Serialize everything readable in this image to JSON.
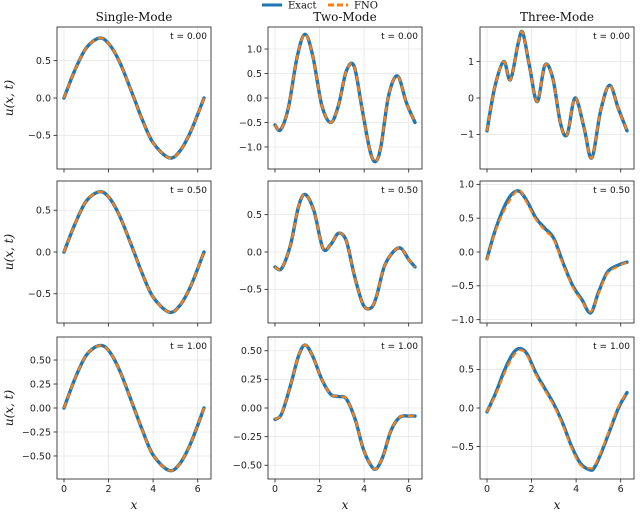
{
  "legend": {
    "exact": "Exact",
    "fno": "FNO"
  },
  "colors": {
    "exact": "#1f77b4",
    "fno": "#ff7f0e"
  },
  "chart_data": {
    "type": "line",
    "layout": "3x3 grid of line plots",
    "legend_placement": "top-center",
    "grid": true,
    "columns": [
      "Single-Mode",
      "Two-Mode",
      "Three-Mode"
    ],
    "xlabel": "x",
    "ylabel": "u(x, t)",
    "xlim": [
      0,
      6.2832
    ],
    "xticks": [
      0,
      2,
      4,
      6
    ],
    "series_names": [
      "Exact",
      "FNO"
    ],
    "panels": [
      {
        "row": 0,
        "col": 0,
        "time_label": "t = 0.00",
        "ylim": [
          -0.95,
          0.95
        ],
        "yticks": [
          -0.5,
          0.0,
          0.5
        ],
        "ytick_labels": [
          "−0.5",
          "0.0",
          "0.5"
        ],
        "x": [
          0,
          0.5,
          1.0,
          1.5708,
          2.0,
          2.5,
          3.1416,
          3.5,
          4.0,
          4.7124,
          5.2,
          5.7,
          6.2832
        ],
        "exact": [
          0,
          0.38,
          0.67,
          0.8,
          0.73,
          0.48,
          0,
          -0.28,
          -0.6,
          -0.8,
          -0.71,
          -0.44,
          0
        ],
        "fno": [
          0,
          0.38,
          0.67,
          0.8,
          0.73,
          0.48,
          0,
          -0.28,
          -0.6,
          -0.8,
          -0.71,
          -0.44,
          0
        ]
      },
      {
        "row": 0,
        "col": 1,
        "time_label": "t = 0.00",
        "ylim": [
          -1.45,
          1.45
        ],
        "yticks": [
          -1.0,
          -0.5,
          0.0,
          0.5,
          1.0
        ],
        "ytick_labels": [
          "−1.0",
          "−0.5",
          "0.0",
          "0.5",
          "1.0"
        ],
        "x": [
          0,
          0.25,
          0.6,
          1.0,
          1.35,
          1.7,
          2.1,
          2.5,
          2.85,
          3.2,
          3.55,
          3.9,
          4.25,
          4.5,
          4.75,
          5.1,
          5.5,
          5.9,
          6.2832
        ],
        "exact": [
          -0.55,
          -0.65,
          -0.2,
          0.85,
          1.3,
          0.85,
          -0.15,
          -0.5,
          -0.15,
          0.55,
          0.65,
          -0.2,
          -1.05,
          -1.3,
          -1.0,
          0.05,
          0.45,
          -0.1,
          -0.5
        ],
        "fno": [
          -0.55,
          -0.65,
          -0.2,
          0.85,
          1.3,
          0.85,
          -0.15,
          -0.5,
          -0.15,
          0.55,
          0.65,
          -0.2,
          -1.05,
          -1.3,
          -1.0,
          0.05,
          0.45,
          -0.1,
          -0.5
        ]
      },
      {
        "row": 0,
        "col": 2,
        "time_label": "t = 0.00",
        "ylim": [
          -1.95,
          1.95
        ],
        "yticks": [
          -1,
          0,
          1
        ],
        "ytick_labels": [
          "−1",
          "0",
          "1"
        ],
        "x": [
          0,
          0.35,
          0.75,
          1.05,
          1.4,
          1.6,
          1.9,
          2.25,
          2.6,
          2.95,
          3.3,
          3.6,
          3.95,
          4.35,
          4.7,
          5.1,
          5.5,
          5.9,
          6.2832
        ],
        "exact": [
          -0.9,
          0.3,
          1.0,
          0.5,
          1.5,
          1.8,
          0.9,
          -0.1,
          0.9,
          0.55,
          -0.7,
          -1.0,
          0.0,
          -0.8,
          -1.65,
          -0.35,
          0.35,
          -0.3,
          -0.9
        ],
        "fno": [
          -0.9,
          0.3,
          1.0,
          0.5,
          1.5,
          1.8,
          0.9,
          -0.1,
          0.9,
          0.55,
          -0.7,
          -1.0,
          0.0,
          -0.8,
          -1.65,
          -0.35,
          0.35,
          -0.3,
          -0.9
        ]
      },
      {
        "row": 1,
        "col": 0,
        "time_label": "t = 0.50",
        "ylim": [
          -0.85,
          0.85
        ],
        "yticks": [
          -0.5,
          0.0,
          0.5
        ],
        "ytick_labels": [
          "−0.5",
          "0.0",
          "0.5"
        ],
        "x": [
          0,
          0.5,
          1.0,
          1.5708,
          2.0,
          2.5,
          3.1416,
          3.5,
          4.0,
          4.7124,
          5.2,
          5.7,
          6.2832
        ],
        "exact": [
          0,
          0.34,
          0.61,
          0.72,
          0.66,
          0.43,
          0,
          -0.25,
          -0.54,
          -0.72,
          -0.64,
          -0.4,
          0
        ],
        "fno": [
          0,
          0.34,
          0.61,
          0.72,
          0.66,
          0.43,
          0,
          -0.25,
          -0.54,
          -0.72,
          -0.64,
          -0.4,
          0
        ]
      },
      {
        "row": 1,
        "col": 1,
        "time_label": "t = 0.50",
        "ylim": [
          -0.95,
          0.95
        ],
        "yticks": [
          -0.5,
          0.0,
          0.5
        ],
        "ytick_labels": [
          "−0.5",
          "0.0",
          "0.5"
        ],
        "x": [
          0,
          0.3,
          0.7,
          1.05,
          1.35,
          1.75,
          2.15,
          2.5,
          2.85,
          3.2,
          3.55,
          3.95,
          4.3,
          4.55,
          4.9,
          5.3,
          5.65,
          6.0,
          6.2832
        ],
        "exact": [
          -0.2,
          -0.22,
          0.1,
          0.6,
          0.77,
          0.55,
          0.05,
          0.1,
          0.25,
          0.15,
          -0.3,
          -0.7,
          -0.75,
          -0.6,
          -0.2,
          0.0,
          0.05,
          -0.1,
          -0.2
        ],
        "fno": [
          -0.2,
          -0.22,
          0.1,
          0.6,
          0.77,
          0.55,
          0.05,
          0.1,
          0.25,
          0.15,
          -0.3,
          -0.7,
          -0.75,
          -0.6,
          -0.2,
          0.0,
          0.05,
          -0.1,
          -0.2
        ]
      },
      {
        "row": 1,
        "col": 2,
        "time_label": "t = 0.50",
        "ylim": [
          -1.05,
          1.05
        ],
        "yticks": [
          -1.0,
          -0.5,
          0.0,
          0.5,
          1.0
        ],
        "ytick_labels": [
          "−1.0",
          "−0.5",
          "0.0",
          "0.5",
          "1.0"
        ],
        "x": [
          0,
          0.35,
          0.75,
          1.1,
          1.45,
          1.8,
          2.2,
          2.6,
          3.0,
          3.4,
          3.85,
          4.25,
          4.65,
          5.0,
          5.4,
          5.85,
          6.2832
        ],
        "exact": [
          -0.1,
          0.3,
          0.65,
          0.85,
          0.9,
          0.75,
          0.5,
          0.35,
          0.2,
          -0.15,
          -0.5,
          -0.7,
          -0.9,
          -0.6,
          -0.3,
          -0.2,
          -0.15
        ],
        "fno": [
          -0.12,
          0.28,
          0.6,
          0.8,
          0.92,
          0.72,
          0.48,
          0.32,
          0.18,
          -0.17,
          -0.52,
          -0.72,
          -0.88,
          -0.62,
          -0.32,
          -0.22,
          -0.15
        ]
      },
      {
        "row": 2,
        "col": 0,
        "time_label": "t = 1.00",
        "ylim": [
          -0.74,
          0.74
        ],
        "yticks": [
          -0.5,
          -0.25,
          0.0,
          0.25,
          0.5
        ],
        "ytick_labels": [
          "−0.50",
          "−0.25",
          "0.00",
          "0.25",
          "0.50"
        ],
        "x": [
          0,
          0.5,
          1.0,
          1.5708,
          2.0,
          2.5,
          3.1416,
          3.5,
          4.0,
          4.7124,
          5.2,
          5.7,
          6.2832
        ],
        "exact": [
          0,
          0.31,
          0.55,
          0.65,
          0.6,
          0.39,
          0,
          -0.22,
          -0.49,
          -0.65,
          -0.58,
          -0.36,
          0
        ],
        "fno": [
          0,
          0.31,
          0.55,
          0.65,
          0.6,
          0.39,
          0,
          -0.22,
          -0.49,
          -0.65,
          -0.58,
          -0.36,
          0
        ]
      },
      {
        "row": 2,
        "col": 1,
        "time_label": "t = 1.00",
        "ylim": [
          -0.62,
          0.62
        ],
        "yticks": [
          -0.5,
          -0.25,
          0.0,
          0.25,
          0.5
        ],
        "ytick_labels": [
          "−0.50",
          "−0.25",
          "0.00",
          "0.25",
          "0.50"
        ],
        "x": [
          0,
          0.3,
          0.7,
          1.05,
          1.35,
          1.7,
          2.1,
          2.5,
          2.85,
          3.2,
          3.6,
          3.95,
          4.3,
          4.55,
          4.85,
          5.2,
          5.6,
          6.0,
          6.2832
        ],
        "exact": [
          -0.1,
          -0.05,
          0.2,
          0.45,
          0.55,
          0.45,
          0.25,
          0.12,
          0.1,
          0.08,
          -0.1,
          -0.35,
          -0.5,
          -0.53,
          -0.42,
          -0.2,
          -0.08,
          -0.07,
          -0.07
        ],
        "fno": [
          -0.1,
          -0.05,
          0.2,
          0.45,
          0.55,
          0.45,
          0.25,
          0.12,
          0.1,
          0.08,
          -0.1,
          -0.35,
          -0.5,
          -0.53,
          -0.42,
          -0.2,
          -0.08,
          -0.07,
          -0.07
        ]
      },
      {
        "row": 2,
        "col": 2,
        "time_label": "t = 1.00",
        "ylim": [
          -0.92,
          0.92
        ],
        "yticks": [
          -0.5,
          0.0,
          0.5
        ],
        "ytick_labels": [
          "−0.5",
          "0.0",
          "0.5"
        ],
        "x": [
          0,
          0.4,
          0.8,
          1.2,
          1.5,
          1.8,
          2.2,
          2.6,
          3.0,
          3.4,
          3.8,
          4.2,
          4.6,
          4.8,
          5.1,
          5.5,
          5.9,
          6.2832
        ],
        "exact": [
          -0.05,
          0.2,
          0.5,
          0.72,
          0.77,
          0.7,
          0.45,
          0.25,
          0.05,
          -0.2,
          -0.5,
          -0.72,
          -0.8,
          -0.78,
          -0.6,
          -0.3,
          0.0,
          0.2
        ],
        "fno": [
          -0.05,
          0.18,
          0.46,
          0.68,
          0.75,
          0.68,
          0.43,
          0.23,
          0.03,
          -0.22,
          -0.52,
          -0.74,
          -0.78,
          -0.76,
          -0.58,
          -0.28,
          0.02,
          0.2
        ]
      }
    ]
  }
}
